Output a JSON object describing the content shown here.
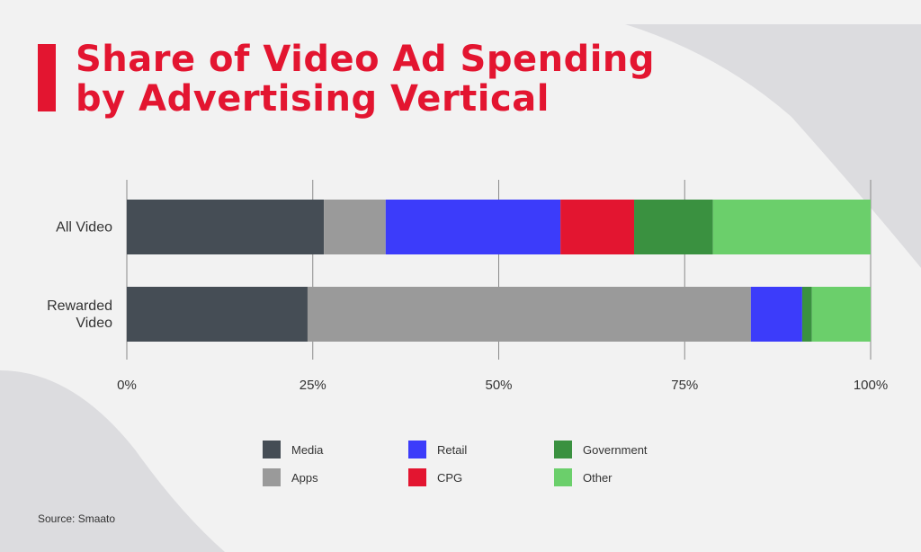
{
  "title_lines": [
    "Share of Video Ad Spending",
    "by Advertising Vertical"
  ],
  "source": "Source: Smaato",
  "colors": {
    "Media": "#454d55",
    "Apps": "#9a9a9a",
    "Retail": "#3c3cfa",
    "CPG": "#e31530",
    "Government": "#3a9140",
    "Other": "#6bcf6b"
  },
  "chart_data": {
    "type": "bar",
    "orientation": "horizontal",
    "stacked": true,
    "categories": [
      "All Video",
      "Rewarded Video"
    ],
    "category_labels": [
      [
        "All Video"
      ],
      [
        "Rewarded",
        "Video"
      ]
    ],
    "series": [
      {
        "name": "Media",
        "values": [
          26.5,
          24.3
        ]
      },
      {
        "name": "Apps",
        "values": [
          8.3,
          59.6
        ]
      },
      {
        "name": "Retail",
        "values": [
          23.5,
          6.9
        ]
      },
      {
        "name": "CPG",
        "values": [
          9.9,
          0
        ]
      },
      {
        "name": "Government",
        "values": [
          10.6,
          1.3
        ]
      },
      {
        "name": "Other",
        "values": [
          21.2,
          7.9
        ]
      }
    ],
    "xlim": [
      0,
      100
    ],
    "ticks": [
      "0%",
      "25%",
      "50%",
      "75%",
      "100%"
    ],
    "grid": true,
    "legend_position": "bottom",
    "xlabel": "",
    "ylabel": ""
  }
}
